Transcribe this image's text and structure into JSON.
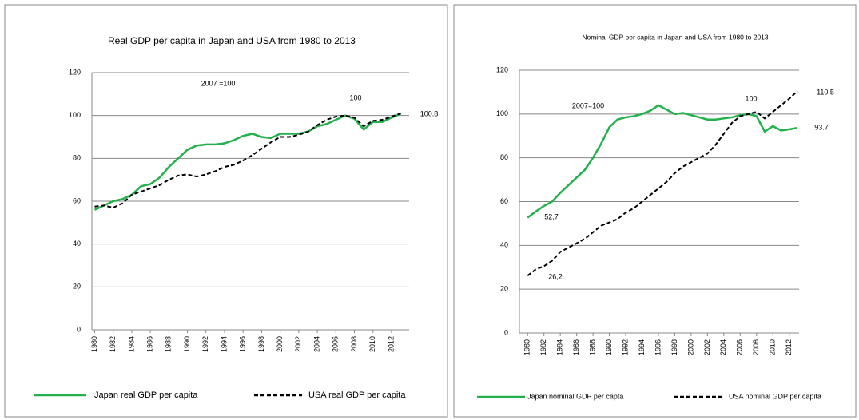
{
  "chart_data": [
    {
      "type": "line",
      "title": "Real GDP per capita in Japan and USA from 1980 to 2013",
      "x": [
        1980,
        1981,
        1982,
        1983,
        1984,
        1985,
        1986,
        1987,
        1988,
        1989,
        1990,
        1991,
        1992,
        1993,
        1994,
        1995,
        1996,
        1997,
        1998,
        1999,
        2000,
        2001,
        2002,
        2003,
        2004,
        2005,
        2006,
        2007,
        2008,
        2009,
        2010,
        2011,
        2012,
        2013
      ],
      "series": [
        {
          "name": "Japan real GDP per capita",
          "color": "#22b14c",
          "dash": false,
          "values": [
            56,
            58,
            60,
            61,
            63,
            67,
            68,
            71,
            76,
            80,
            84,
            86,
            86.5,
            86.5,
            87,
            88.5,
            90.5,
            91.5,
            90,
            89.5,
            91.5,
            91.5,
            91.5,
            92.5,
            95,
            96,
            98,
            100,
            98.5,
            93.5,
            97,
            97,
            99,
            100.8
          ]
        },
        {
          "name": "USA real GDP per capita",
          "color": "#000000",
          "dash": true,
          "values": [
            57.5,
            58,
            57,
            59,
            63,
            64.5,
            66,
            67.5,
            70,
            72,
            72.5,
            71.5,
            72.5,
            74,
            76,
            77,
            79,
            81.5,
            84.5,
            87.5,
            90,
            90,
            91,
            92.5,
            95.5,
            98,
            99.5,
            100,
            99,
            95,
            97.5,
            98,
            99.5,
            101
          ]
        }
      ],
      "annotations": [
        "2007 =100",
        "100",
        "100.8"
      ],
      "xlim": [
        1979.7,
        2013.9
      ],
      "xticks": [
        1980,
        1982,
        1984,
        1986,
        1988,
        1990,
        1992,
        1994,
        1996,
        1998,
        2000,
        2002,
        2004,
        2006,
        2008,
        2010,
        2012
      ],
      "ylim": [
        0,
        120
      ],
      "yticks": [
        0,
        20,
        40,
        60,
        80,
        100,
        120
      ],
      "grid": true
    },
    {
      "type": "line",
      "title": "Nominal GDP per capita in Japan and USA from 1980 to 2013",
      "x": [
        1980,
        1981,
        1982,
        1983,
        1984,
        1985,
        1986,
        1987,
        1988,
        1989,
        1990,
        1991,
        1992,
        1993,
        1994,
        1995,
        1996,
        1997,
        1998,
        1999,
        2000,
        2001,
        2002,
        2003,
        2004,
        2005,
        2006,
        2007,
        2008,
        2009,
        2010,
        2011,
        2012,
        2013
      ],
      "series": [
        {
          "name": "Japan nominal GDP per capta",
          "color": "#22b14c",
          "dash": false,
          "values": [
            52.7,
            55.5,
            58,
            60,
            64,
            67.5,
            71,
            74.5,
            80,
            86.5,
            94,
            97.5,
            98.5,
            99,
            100,
            101.5,
            104,
            102,
            100,
            100.5,
            99.5,
            98.5,
            97.5,
            97.5,
            98,
            98.5,
            99.5,
            100,
            99,
            92,
            94.5,
            92.5,
            93,
            93.7
          ]
        },
        {
          "name": "USA nominal GDP per capita",
          "color": "#000000",
          "dash": true,
          "values": [
            26.2,
            29,
            30.5,
            33,
            37,
            39,
            41,
            43,
            46,
            49,
            50.5,
            52,
            55,
            57,
            60,
            63,
            66,
            69,
            73,
            76,
            78,
            80,
            82,
            86,
            91,
            96,
            99,
            100,
            101,
            98,
            101,
            104,
            107,
            110.5
          ]
        }
      ],
      "annotations": [
        "2007=100",
        "100",
        "110.5",
        "93.7",
        "52,7",
        "26,2"
      ],
      "xlim": [
        1979.0,
        2013.2
      ],
      "xticks": [
        1980,
        1982,
        1984,
        1986,
        1988,
        1990,
        1992,
        1994,
        1996,
        1998,
        2000,
        2002,
        2004,
        2006,
        2008,
        2010,
        2012
      ],
      "ylim": [
        0,
        120
      ],
      "yticks": [
        0,
        20,
        40,
        60,
        80,
        100,
        120
      ],
      "grid": true
    }
  ]
}
